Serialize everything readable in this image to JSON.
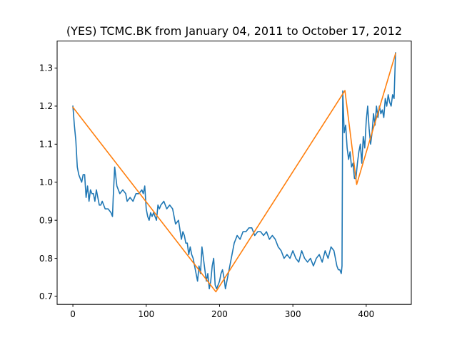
{
  "chart_data": {
    "type": "line",
    "title": "(YES) TCMC.BK from January 04, 2011 to October 17, 2012",
    "xlabel": "",
    "ylabel": "",
    "xlim": [
      -21.5,
      461.5
    ],
    "ylim": [
      0.679,
      1.371
    ],
    "x_ticks": [
      0,
      100,
      200,
      300,
      400
    ],
    "y_ticks": [
      0.7,
      0.8,
      0.9,
      1.0,
      1.1,
      1.2,
      1.3
    ],
    "x_tick_labels": [
      "0",
      "100",
      "200",
      "300",
      "400"
    ],
    "y_tick_labels": [
      "0.7",
      "0.8",
      "0.9",
      "1.0",
      "1.1",
      "1.2",
      "1.3"
    ],
    "grid": false,
    "legend": "none",
    "series": [
      {
        "color": "#1f77b4",
        "x": [
          0,
          2,
          4,
          6,
          8,
          10,
          12,
          14,
          16,
          18,
          20,
          22,
          24,
          26,
          28,
          30,
          32,
          34,
          36,
          38,
          40,
          44,
          48,
          52,
          54,
          55,
          57,
          60,
          64,
          68,
          72,
          74,
          78,
          82,
          86,
          90,
          94,
          96,
          98,
          100,
          102,
          104,
          106,
          108,
          110,
          112,
          114,
          116,
          118,
          120,
          124,
          128,
          132,
          136,
          140,
          144,
          148,
          150,
          152,
          154,
          156,
          158,
          160,
          162,
          164,
          166,
          168,
          170,
          172,
          174,
          176,
          178,
          180,
          182,
          184,
          186,
          188,
          190,
          192,
          194,
          196,
          198,
          200,
          202,
          204,
          206,
          208,
          210,
          212,
          214,
          216,
          220,
          224,
          228,
          232,
          236,
          240,
          244,
          248,
          252,
          256,
          260,
          264,
          268,
          272,
          276,
          280,
          284,
          288,
          292,
          296,
          300,
          304,
          308,
          312,
          316,
          320,
          324,
          328,
          332,
          336,
          340,
          344,
          348,
          352,
          356,
          360,
          362,
          364,
          366,
          367,
          368,
          370,
          372,
          374,
          376,
          378,
          380,
          382,
          384,
          386,
          388,
          390,
          392,
          394,
          396,
          398,
          400,
          402,
          404,
          406,
          408,
          410,
          412,
          414,
          416,
          418,
          420,
          422,
          424,
          426,
          428,
          430,
          432,
          434,
          436,
          438,
          440
        ],
        "values": [
          1.2,
          1.15,
          1.11,
          1.04,
          1.02,
          1.01,
          1.0,
          1.02,
          1.02,
          0.96,
          0.99,
          0.95,
          0.98,
          0.97,
          0.97,
          0.95,
          0.98,
          0.96,
          0.94,
          0.94,
          0.95,
          0.93,
          0.93,
          0.92,
          0.91,
          0.96,
          1.04,
          0.99,
          0.97,
          0.98,
          0.97,
          0.95,
          0.96,
          0.95,
          0.97,
          0.97,
          0.98,
          0.97,
          0.99,
          0.93,
          0.91,
          0.9,
          0.92,
          0.91,
          0.92,
          0.91,
          0.9,
          0.94,
          0.93,
          0.94,
          0.95,
          0.93,
          0.94,
          0.93,
          0.89,
          0.9,
          0.85,
          0.87,
          0.86,
          0.84,
          0.84,
          0.81,
          0.83,
          0.81,
          0.8,
          0.78,
          0.76,
          0.74,
          0.78,
          0.76,
          0.83,
          0.8,
          0.77,
          0.74,
          0.76,
          0.72,
          0.74,
          0.78,
          0.8,
          0.73,
          0.72,
          0.73,
          0.74,
          0.76,
          0.77,
          0.75,
          0.72,
          0.74,
          0.76,
          0.78,
          0.8,
          0.84,
          0.86,
          0.85,
          0.87,
          0.87,
          0.88,
          0.88,
          0.86,
          0.87,
          0.87,
          0.86,
          0.87,
          0.85,
          0.86,
          0.85,
          0.83,
          0.82,
          0.8,
          0.81,
          0.8,
          0.82,
          0.8,
          0.79,
          0.82,
          0.8,
          0.79,
          0.8,
          0.78,
          0.8,
          0.81,
          0.79,
          0.82,
          0.8,
          0.83,
          0.82,
          0.78,
          0.77,
          0.77,
          0.76,
          0.78,
          1.24,
          1.13,
          1.15,
          1.09,
          1.06,
          1.08,
          1.04,
          1.05,
          1.01,
          1.01,
          1.05,
          1.08,
          1.1,
          1.05,
          1.12,
          1.09,
          1.16,
          1.2,
          1.14,
          1.1,
          1.13,
          1.18,
          1.15,
          1.2,
          1.17,
          1.2,
          1.18,
          1.19,
          1.17,
          1.22,
          1.2,
          1.23,
          1.21,
          1.2,
          1.23,
          1.22,
          1.34
        ]
      },
      {
        "color": "#ff7f0e",
        "x": [
          0,
          195,
          371,
          387,
          440
        ],
        "values": [
          1.197,
          0.712,
          1.241,
          0.994,
          1.338
        ]
      }
    ]
  }
}
